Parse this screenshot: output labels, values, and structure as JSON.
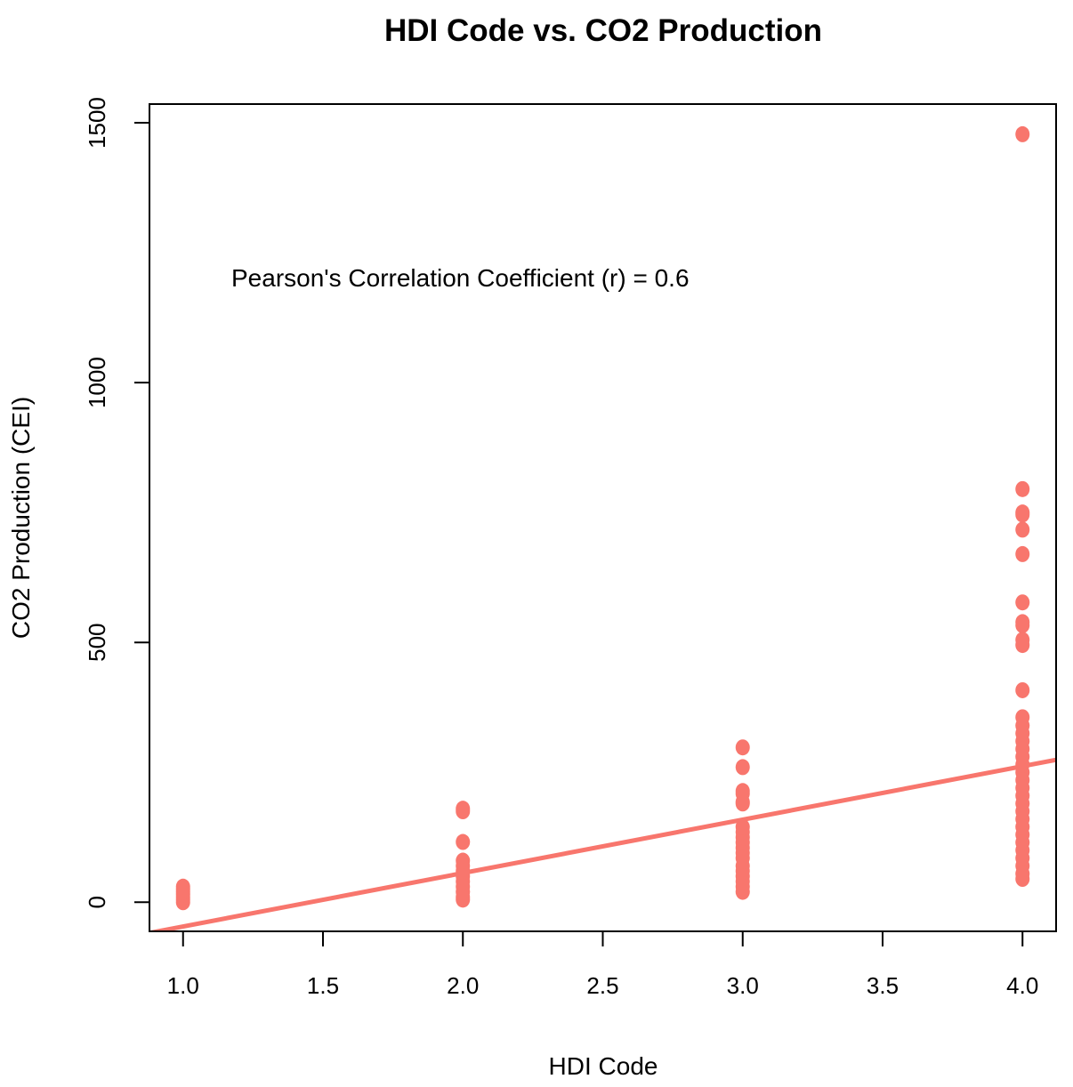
{
  "chart_data": {
    "type": "scatter",
    "title": "HDI Code vs. CO2 Production",
    "xlabel": "HDI Code",
    "ylabel": "CO2 Production (CEI)",
    "annotation": "Pearson's Correlation Coefficient (r) = 0.6",
    "xlim": [
      0.88,
      4.12
    ],
    "ylim": [
      -56,
      1536
    ],
    "xticks": [
      "1.0",
      "1.5",
      "2.0",
      "2.5",
      "3.0",
      "3.5",
      "4.0"
    ],
    "xtick_values": [
      1.0,
      1.5,
      2.0,
      2.5,
      3.0,
      3.5,
      4.0
    ],
    "yticks": [
      "0",
      "500",
      "1000",
      "1500"
    ],
    "ytick_values": [
      0,
      500,
      1000,
      1500
    ],
    "grid": false,
    "point_color": "#F8766D",
    "line_color": "#F8766D",
    "regression_line": {
      "intercept": -149.5,
      "slope": 102.8
    },
    "points": [
      {
        "x": 1,
        "y": 0
      },
      {
        "x": 1,
        "y": 5
      },
      {
        "x": 1,
        "y": 10
      },
      {
        "x": 1,
        "y": 15
      },
      {
        "x": 1,
        "y": 20
      },
      {
        "x": 1,
        "y": 25
      },
      {
        "x": 1,
        "y": 30
      },
      {
        "x": 2,
        "y": 180
      },
      {
        "x": 2,
        "y": 175
      },
      {
        "x": 2,
        "y": 116
      },
      {
        "x": 2,
        "y": 80
      },
      {
        "x": 2,
        "y": 70
      },
      {
        "x": 2,
        "y": 60
      },
      {
        "x": 2,
        "y": 50
      },
      {
        "x": 2,
        "y": 40
      },
      {
        "x": 2,
        "y": 30
      },
      {
        "x": 2,
        "y": 20
      },
      {
        "x": 2,
        "y": 10
      },
      {
        "x": 2,
        "y": 5
      },
      {
        "x": 3,
        "y": 298
      },
      {
        "x": 3,
        "y": 260
      },
      {
        "x": 3,
        "y": 214
      },
      {
        "x": 3,
        "y": 209
      },
      {
        "x": 3,
        "y": 193
      },
      {
        "x": 3,
        "y": 190
      },
      {
        "x": 3,
        "y": 145
      },
      {
        "x": 3,
        "y": 135
      },
      {
        "x": 3,
        "y": 125
      },
      {
        "x": 3,
        "y": 115
      },
      {
        "x": 3,
        "y": 105
      },
      {
        "x": 3,
        "y": 95
      },
      {
        "x": 3,
        "y": 85
      },
      {
        "x": 3,
        "y": 70
      },
      {
        "x": 3,
        "y": 60
      },
      {
        "x": 3,
        "y": 50
      },
      {
        "x": 3,
        "y": 40
      },
      {
        "x": 3,
        "y": 30
      },
      {
        "x": 3,
        "y": 20
      },
      {
        "x": 4,
        "y": 1478
      },
      {
        "x": 4,
        "y": 795
      },
      {
        "x": 4,
        "y": 750
      },
      {
        "x": 4,
        "y": 746
      },
      {
        "x": 4,
        "y": 717
      },
      {
        "x": 4,
        "y": 670
      },
      {
        "x": 4,
        "y": 577
      },
      {
        "x": 4,
        "y": 539
      },
      {
        "x": 4,
        "y": 533
      },
      {
        "x": 4,
        "y": 505
      },
      {
        "x": 4,
        "y": 495
      },
      {
        "x": 4,
        "y": 408
      },
      {
        "x": 4,
        "y": 356
      },
      {
        "x": 4,
        "y": 340
      },
      {
        "x": 4,
        "y": 325
      },
      {
        "x": 4,
        "y": 310
      },
      {
        "x": 4,
        "y": 295
      },
      {
        "x": 4,
        "y": 280
      },
      {
        "x": 4,
        "y": 265
      },
      {
        "x": 4,
        "y": 250
      },
      {
        "x": 4,
        "y": 235
      },
      {
        "x": 4,
        "y": 220
      },
      {
        "x": 4,
        "y": 205
      },
      {
        "x": 4,
        "y": 190
      },
      {
        "x": 4,
        "y": 175
      },
      {
        "x": 4,
        "y": 160
      },
      {
        "x": 4,
        "y": 145
      },
      {
        "x": 4,
        "y": 130
      },
      {
        "x": 4,
        "y": 115
      },
      {
        "x": 4,
        "y": 100
      },
      {
        "x": 4,
        "y": 85
      },
      {
        "x": 4,
        "y": 70
      },
      {
        "x": 4,
        "y": 55
      },
      {
        "x": 4,
        "y": 45
      }
    ]
  }
}
